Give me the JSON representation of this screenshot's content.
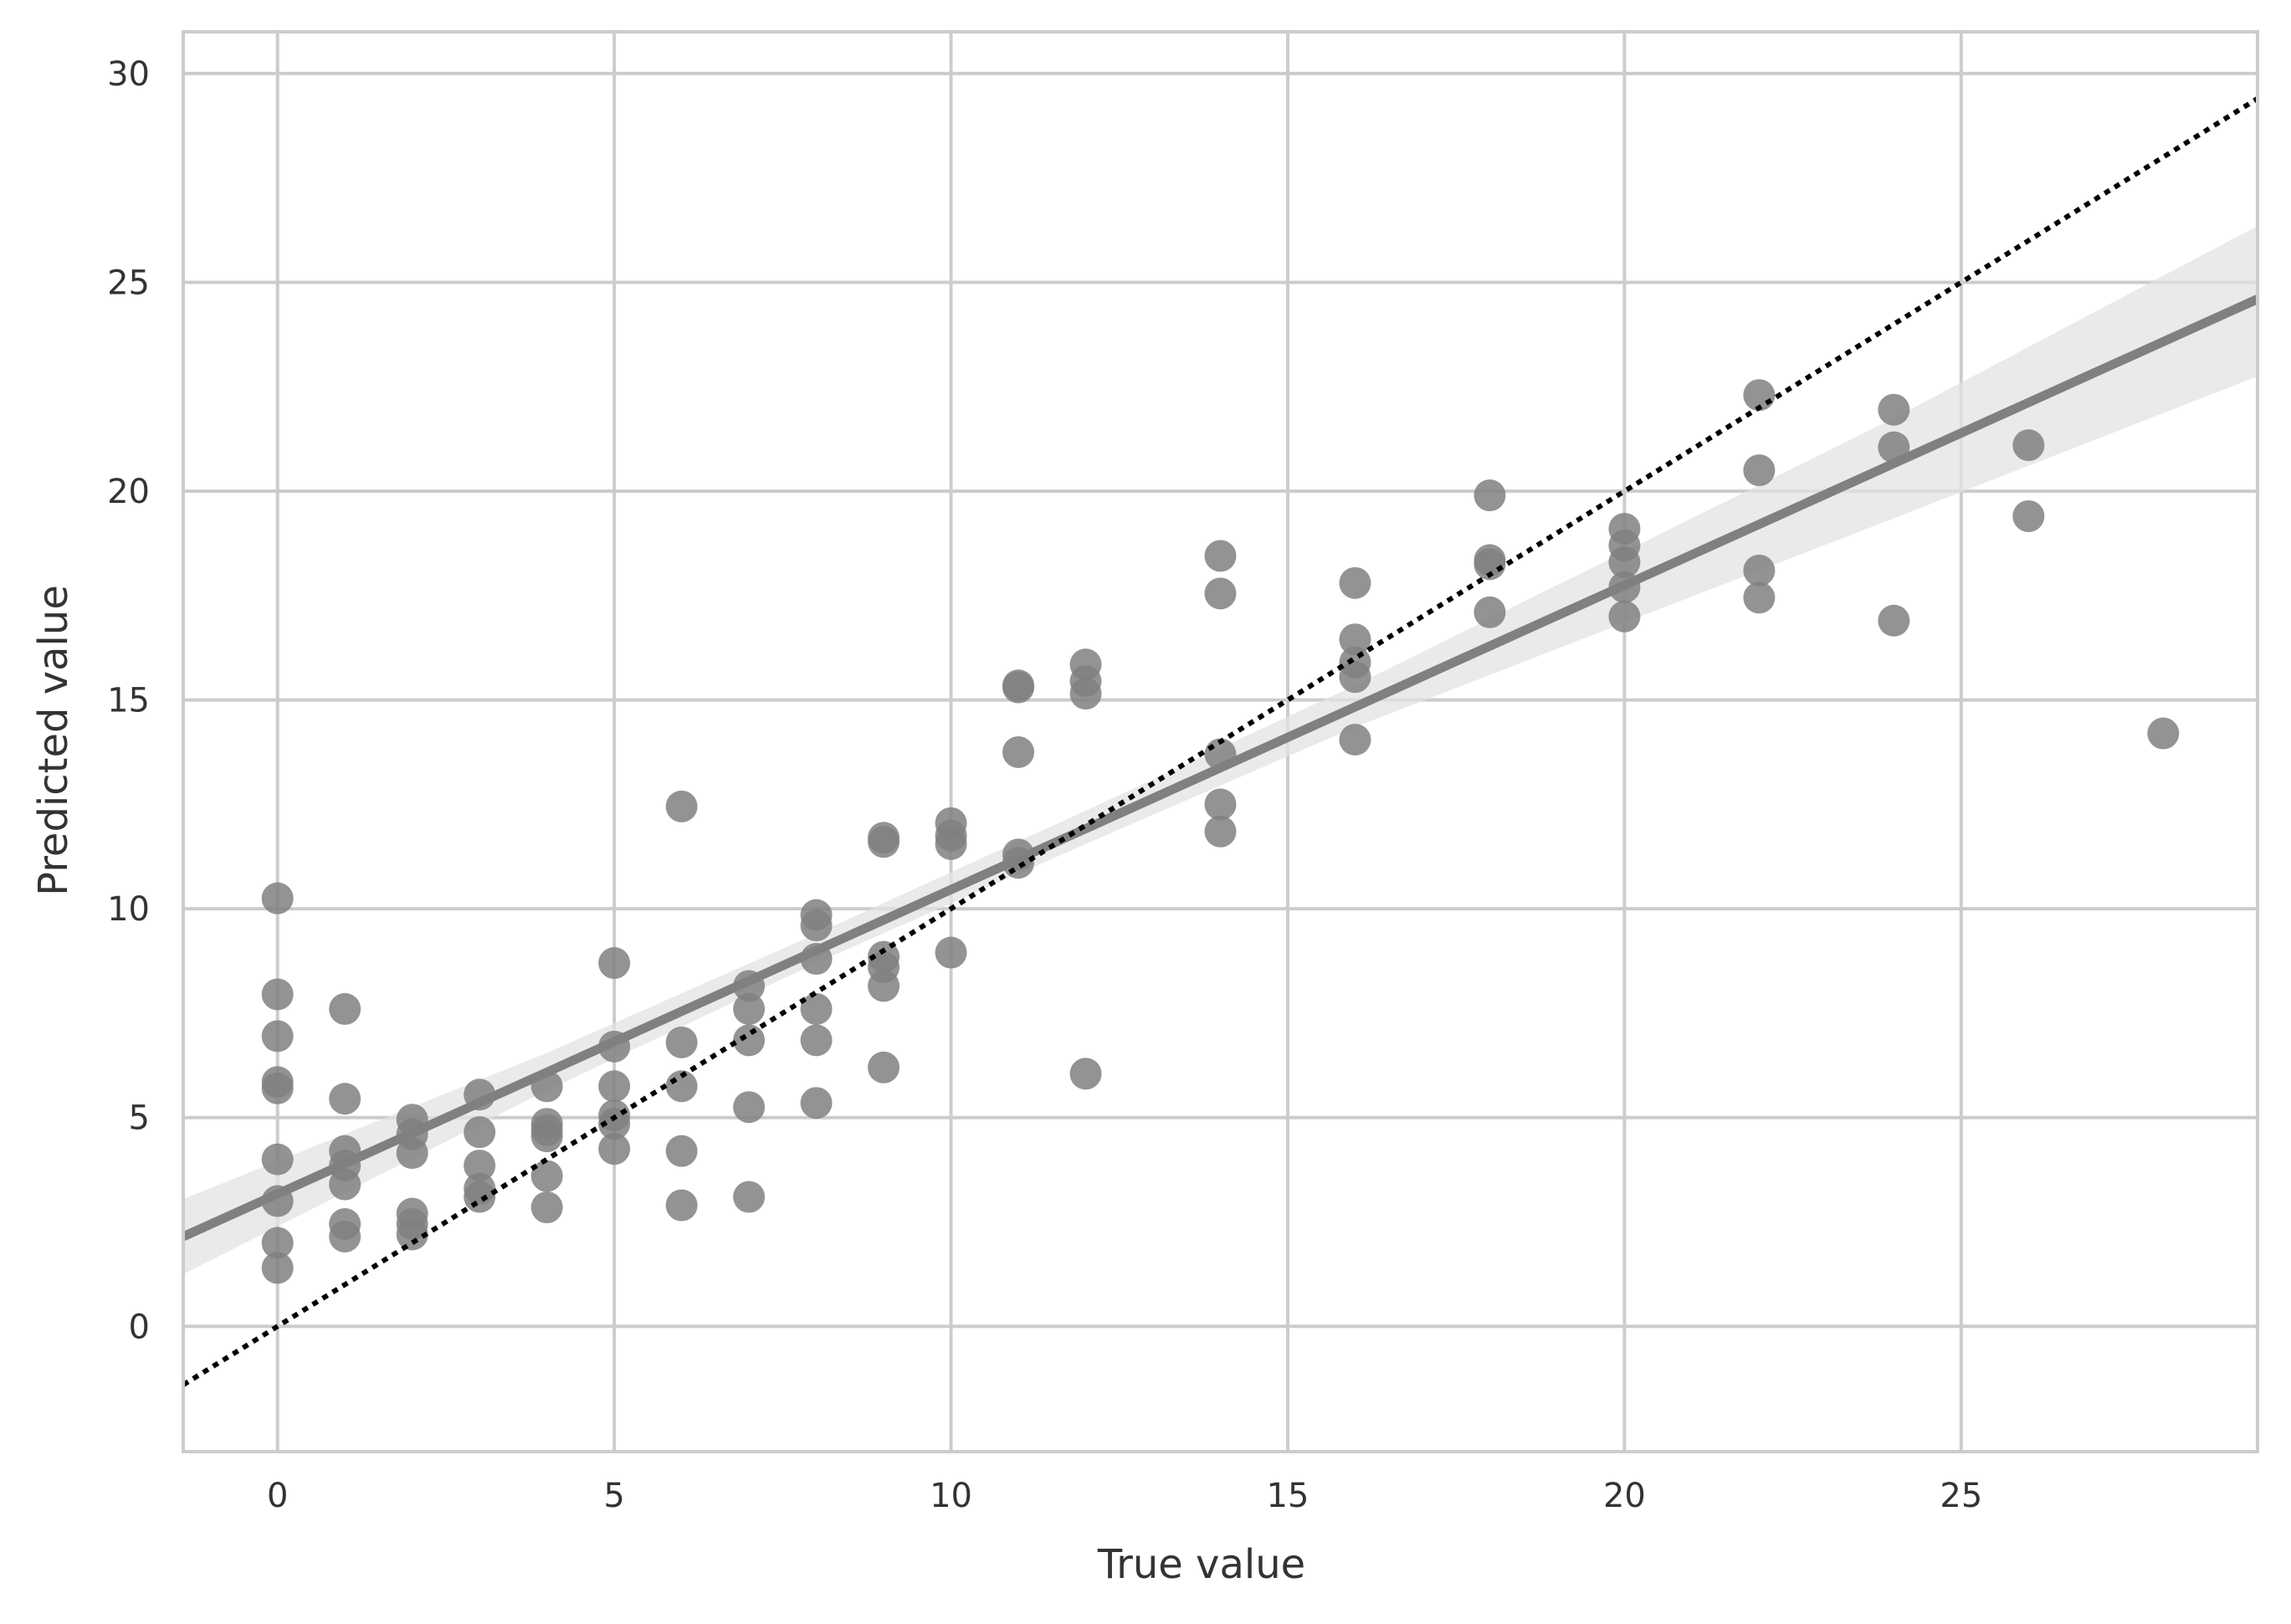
{
  "chart_data": {
    "type": "scatter",
    "title": "",
    "xlabel": "True value",
    "ylabel": "Predicted value",
    "xlim": [
      -1.4,
      29.4
    ],
    "ylim": [
      -3,
      31
    ],
    "xticks": [
      0,
      5,
      10,
      15,
      20,
      25
    ],
    "yticks": [
      0,
      5,
      10,
      15,
      20,
      25,
      30
    ],
    "grid": true,
    "colors": {
      "points": "#808080",
      "regression_line": "#808080",
      "confidence_band": "#e3e3e3",
      "identity_line": "#000000",
      "grid": "#cccccc",
      "spine": "#cccccc"
    },
    "points": [
      [
        0,
        10.25
      ],
      [
        0,
        7.95
      ],
      [
        0,
        6.95
      ],
      [
        0,
        5.85
      ],
      [
        0,
        5.7
      ],
      [
        0,
        4.0
      ],
      [
        0,
        3.0
      ],
      [
        0,
        2.0
      ],
      [
        0,
        1.4
      ],
      [
        1,
        7.6
      ],
      [
        1,
        5.45
      ],
      [
        1,
        4.2
      ],
      [
        1,
        3.85
      ],
      [
        1,
        3.4
      ],
      [
        1,
        2.45
      ],
      [
        1,
        2.15
      ],
      [
        2,
        4.95
      ],
      [
        2,
        4.6
      ],
      [
        2,
        4.15
      ],
      [
        2,
        2.7
      ],
      [
        2,
        2.45
      ],
      [
        2,
        2.2
      ],
      [
        3,
        5.55
      ],
      [
        3,
        4.65
      ],
      [
        3,
        3.85
      ],
      [
        3,
        3.3
      ],
      [
        3,
        3.1
      ],
      [
        4,
        5.75
      ],
      [
        4,
        4.85
      ],
      [
        4,
        4.7
      ],
      [
        4,
        4.55
      ],
      [
        4,
        3.6
      ],
      [
        4,
        2.85
      ],
      [
        5,
        8.7
      ],
      [
        5,
        6.7
      ],
      [
        5,
        5.75
      ],
      [
        5,
        5.05
      ],
      [
        5,
        4.85
      ],
      [
        5,
        4.25
      ],
      [
        6,
        12.45
      ],
      [
        6,
        6.8
      ],
      [
        6,
        5.75
      ],
      [
        6,
        4.2
      ],
      [
        6,
        2.9
      ],
      [
        7,
        8.15
      ],
      [
        7,
        7.6
      ],
      [
        7,
        6.85
      ],
      [
        7,
        5.25
      ],
      [
        7,
        3.1
      ],
      [
        8,
        9.85
      ],
      [
        8,
        9.6
      ],
      [
        8,
        8.8
      ],
      [
        8,
        7.6
      ],
      [
        8,
        6.85
      ],
      [
        8,
        5.35
      ],
      [
        9,
        11.7
      ],
      [
        9,
        11.6
      ],
      [
        9,
        8.85
      ],
      [
        9,
        8.6
      ],
      [
        9,
        8.15
      ],
      [
        9,
        6.2
      ],
      [
        10,
        12.05
      ],
      [
        10,
        11.75
      ],
      [
        10,
        11.55
      ],
      [
        10,
        8.95
      ],
      [
        11,
        15.35
      ],
      [
        11,
        15.3
      ],
      [
        11,
        13.75
      ],
      [
        11,
        11.3
      ],
      [
        11,
        11.1
      ],
      [
        12,
        15.85
      ],
      [
        12,
        15.45
      ],
      [
        12,
        15.15
      ],
      [
        12,
        6.05
      ],
      [
        14,
        18.45
      ],
      [
        14,
        17.55
      ],
      [
        14,
        13.7
      ],
      [
        14,
        12.5
      ],
      [
        14,
        11.85
      ],
      [
        16,
        17.8
      ],
      [
        16,
        16.45
      ],
      [
        16,
        15.9
      ],
      [
        16,
        15.55
      ],
      [
        16,
        14.05
      ],
      [
        18,
        19.9
      ],
      [
        18,
        18.35
      ],
      [
        18,
        18.25
      ],
      [
        18,
        17.1
      ],
      [
        20,
        19.1
      ],
      [
        20,
        18.7
      ],
      [
        20,
        18.3
      ],
      [
        20,
        17.7
      ],
      [
        20,
        17.0
      ],
      [
        22,
        22.3
      ],
      [
        22,
        20.5
      ],
      [
        22,
        18.1
      ],
      [
        22,
        17.45
      ],
      [
        24,
        21.95
      ],
      [
        24,
        21.05
      ],
      [
        24,
        16.9
      ],
      [
        26,
        21.1
      ],
      [
        26,
        19.4
      ],
      [
        28,
        14.2
      ]
    ],
    "regression": {
      "x_range": [
        -1.4,
        29.4
      ],
      "y_range": [
        2.15,
        24.6
      ],
      "band": [
        {
          "x": -1.4,
          "lower": 1.25,
          "upper": 3.05
        },
        {
          "x": 4,
          "lower": 5.65,
          "upper": 6.55
        },
        {
          "x": 8,
          "lower": 8.7,
          "upper": 9.4
        },
        {
          "x": 12,
          "lower": 11.55,
          "upper": 12.35
        },
        {
          "x": 16,
          "lower": 14.35,
          "upper": 15.35
        },
        {
          "x": 20,
          "lower": 16.85,
          "upper": 18.55
        },
        {
          "x": 24,
          "lower": 19.35,
          "upper": 21.75
        },
        {
          "x": 29.4,
          "lower": 22.75,
          "upper": 26.35
        }
      ]
    },
    "identity_line": {
      "from": [
        -1.4,
        -1.4
      ],
      "to": [
        29.4,
        29.4
      ]
    }
  }
}
